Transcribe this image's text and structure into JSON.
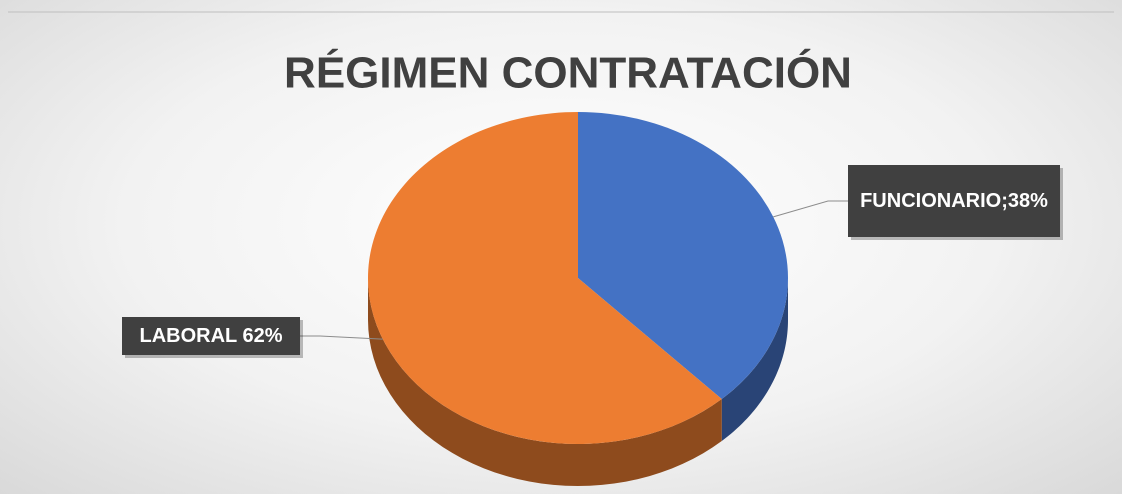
{
  "chart_data": {
    "type": "pie",
    "title": "RÉGIMEN CONTRATACIÓN",
    "values": [
      38,
      62
    ],
    "value_labels": [
      "FUNCIONARIO;38%",
      "LABORAL 62%"
    ],
    "colors": [
      "#4472c4",
      "#ed7d31"
    ]
  }
}
